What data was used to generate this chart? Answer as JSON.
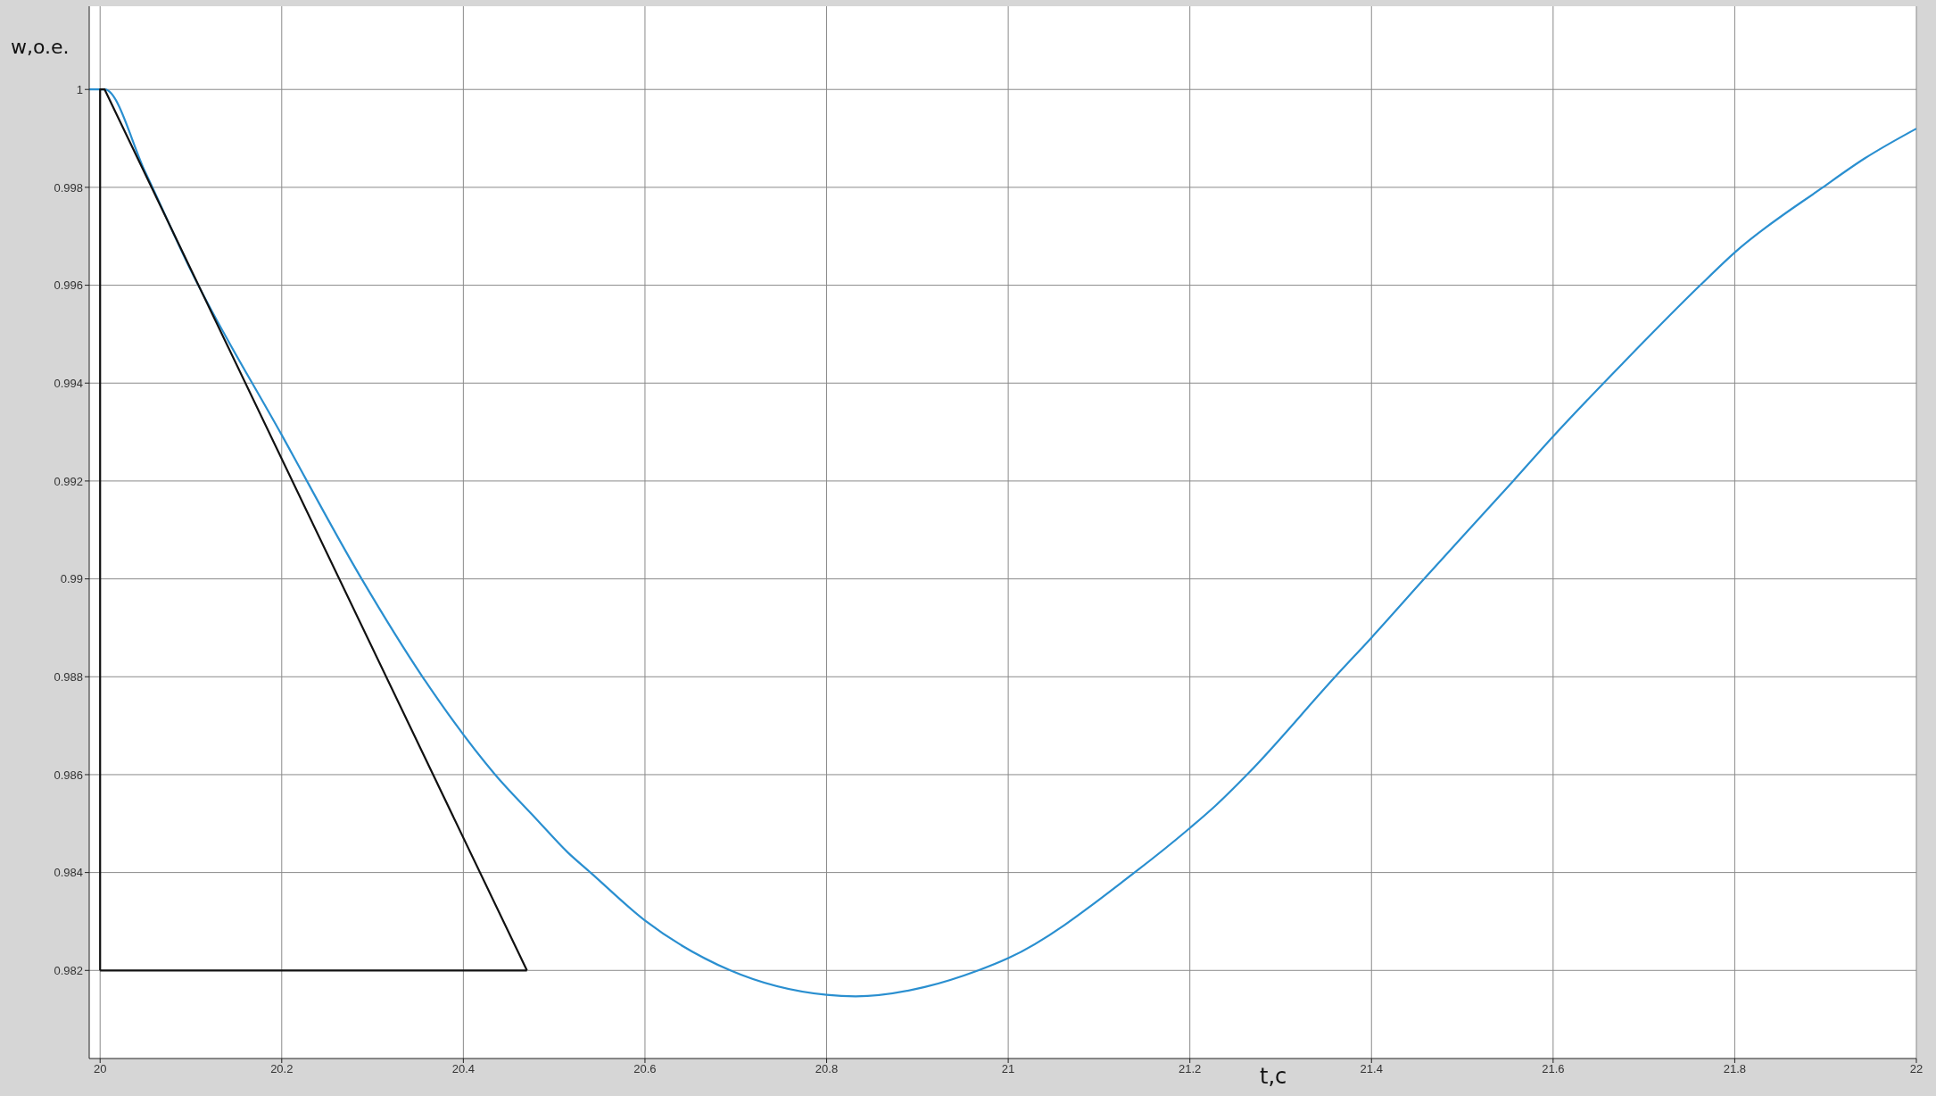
{
  "chart_data": {
    "type": "line",
    "xlabel": "t,c",
    "ylabel": "w,o.e.",
    "xlim": [
      19.988,
      22
    ],
    "ylim": [
      0.9802,
      1.0017
    ],
    "xticks": [
      20,
      20.2,
      20.4,
      20.6,
      20.8,
      21,
      21.2,
      21.4,
      21.6,
      21.8,
      22
    ],
    "yticks": [
      0.982,
      0.984,
      0.986,
      0.988,
      0.99,
      0.992,
      0.994,
      0.996,
      0.998,
      1
    ],
    "grid": true,
    "series": [
      {
        "color": "#2a8fd0",
        "x": [
          19.988,
          20.005,
          20.05,
          20.1,
          20.2,
          20.288,
          20.355,
          20.435,
          20.479,
          20.515,
          20.54,
          20.6,
          20.694,
          20.8,
          20.832,
          20.908,
          20.967,
          21,
          21.139,
          21.2,
          21.229,
          21.265,
          21.36,
          21.4,
          21.458,
          21.556,
          21.6,
          21.677,
          21.762,
          21.8,
          21.897,
          21.943,
          22
        ],
        "values": [
          1,
          1,
          0.9983,
          0.9963,
          0.99294,
          0.99,
          0.988,
          0.986,
          0.98512,
          0.98441,
          0.984,
          0.98302,
          0.982,
          0.9815,
          0.98147,
          0.98166,
          0.982,
          0.98225,
          0.984,
          0.98491,
          0.98538,
          0.98604,
          0.988,
          0.9888,
          0.99,
          0.992,
          0.99291,
          0.99441,
          0.996,
          0.99667,
          0.998,
          0.99859,
          0.9992
        ]
      },
      {
        "color": "#111111",
        "x": [
          20,
          20,
          20.005,
          20.47
        ],
        "values": [
          0.982,
          1,
          1,
          0.982
        ]
      },
      {
        "color": "#111111",
        "x": [
          20,
          20.47
        ],
        "values": [
          0.982,
          0.982
        ]
      }
    ]
  }
}
